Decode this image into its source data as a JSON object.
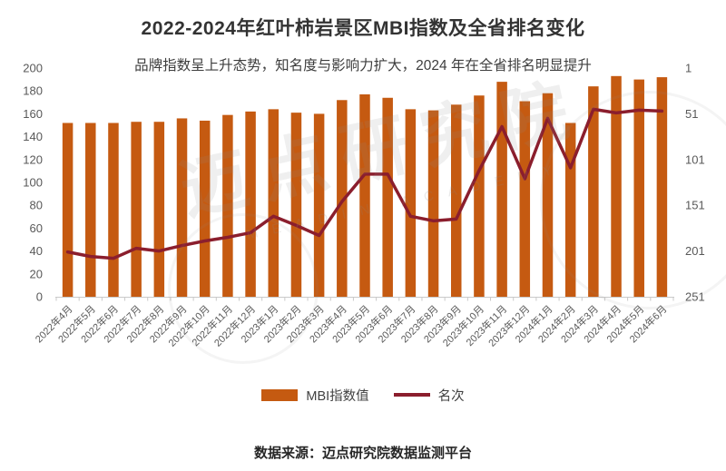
{
  "page": {
    "title": "2022-2024年红叶柿岩景区MBI指数及全省排名变化",
    "subtitle": "品牌指数呈上升态势，知名度与影响力扩大，2024 年在全省排名明显提升",
    "source": "数据来源：迈点研究院数据监测平台"
  },
  "legend": {
    "bar_label": "MBI指数值",
    "line_label": "名次"
  },
  "watermark": {
    "text": "迈点研究院",
    "subtext": "MEADIN ACADEMY"
  },
  "colors": {
    "bar": "#C55A11",
    "line": "#8B1E2D",
    "axis_text": "#595959",
    "axis_line": "#C9C9C9",
    "title": "#333333"
  },
  "chart_data": {
    "type": "bar",
    "combo": "bar+line",
    "title": "2022-2024年红叶柿岩景区MBI指数及全省排名变化",
    "categories": [
      "2022年4月",
      "2022年5月",
      "2022年6月",
      "2022年7月",
      "2022年8月",
      "2022年9月",
      "2022年10月",
      "2022年11月",
      "2022年12月",
      "2023年1月",
      "2023年2月",
      "2023年3月",
      "2023年4月",
      "2023年5月",
      "2023年6月",
      "2023年7月",
      "2023年8月",
      "2023年9月",
      "2023年10月",
      "2023年11月",
      "2023年12月",
      "2024年1月",
      "2024年2月",
      "2024年3月",
      "2024年4月",
      "2024年5月",
      "2024年6月"
    ],
    "series": [
      {
        "name": "MBI指数值",
        "type": "bar",
        "axis": "left",
        "values": [
          152,
          152,
          152,
          153,
          153,
          156,
          154,
          159,
          162,
          164,
          161,
          160,
          172,
          177,
          174,
          164,
          163,
          168,
          176,
          188,
          171,
          178,
          152,
          184,
          193,
          190,
          192
        ]
      },
      {
        "name": "名次",
        "type": "line",
        "axis": "right",
        "values": [
          202,
          207,
          209,
          198,
          201,
          195,
          190,
          186,
          181,
          163,
          173,
          184,
          147,
          117,
          117,
          163,
          168,
          166,
          113,
          65,
          122,
          56,
          110,
          46,
          50,
          47,
          48
        ]
      }
    ],
    "left_axis": {
      "label": "",
      "min": 0,
      "max": 200,
      "step": 20
    },
    "right_axis": {
      "label": "",
      "ticks": [
        1,
        51,
        101,
        151,
        201,
        251
      ],
      "inverted_ranking": true
    },
    "grid": false,
    "legend_position": "bottom"
  }
}
